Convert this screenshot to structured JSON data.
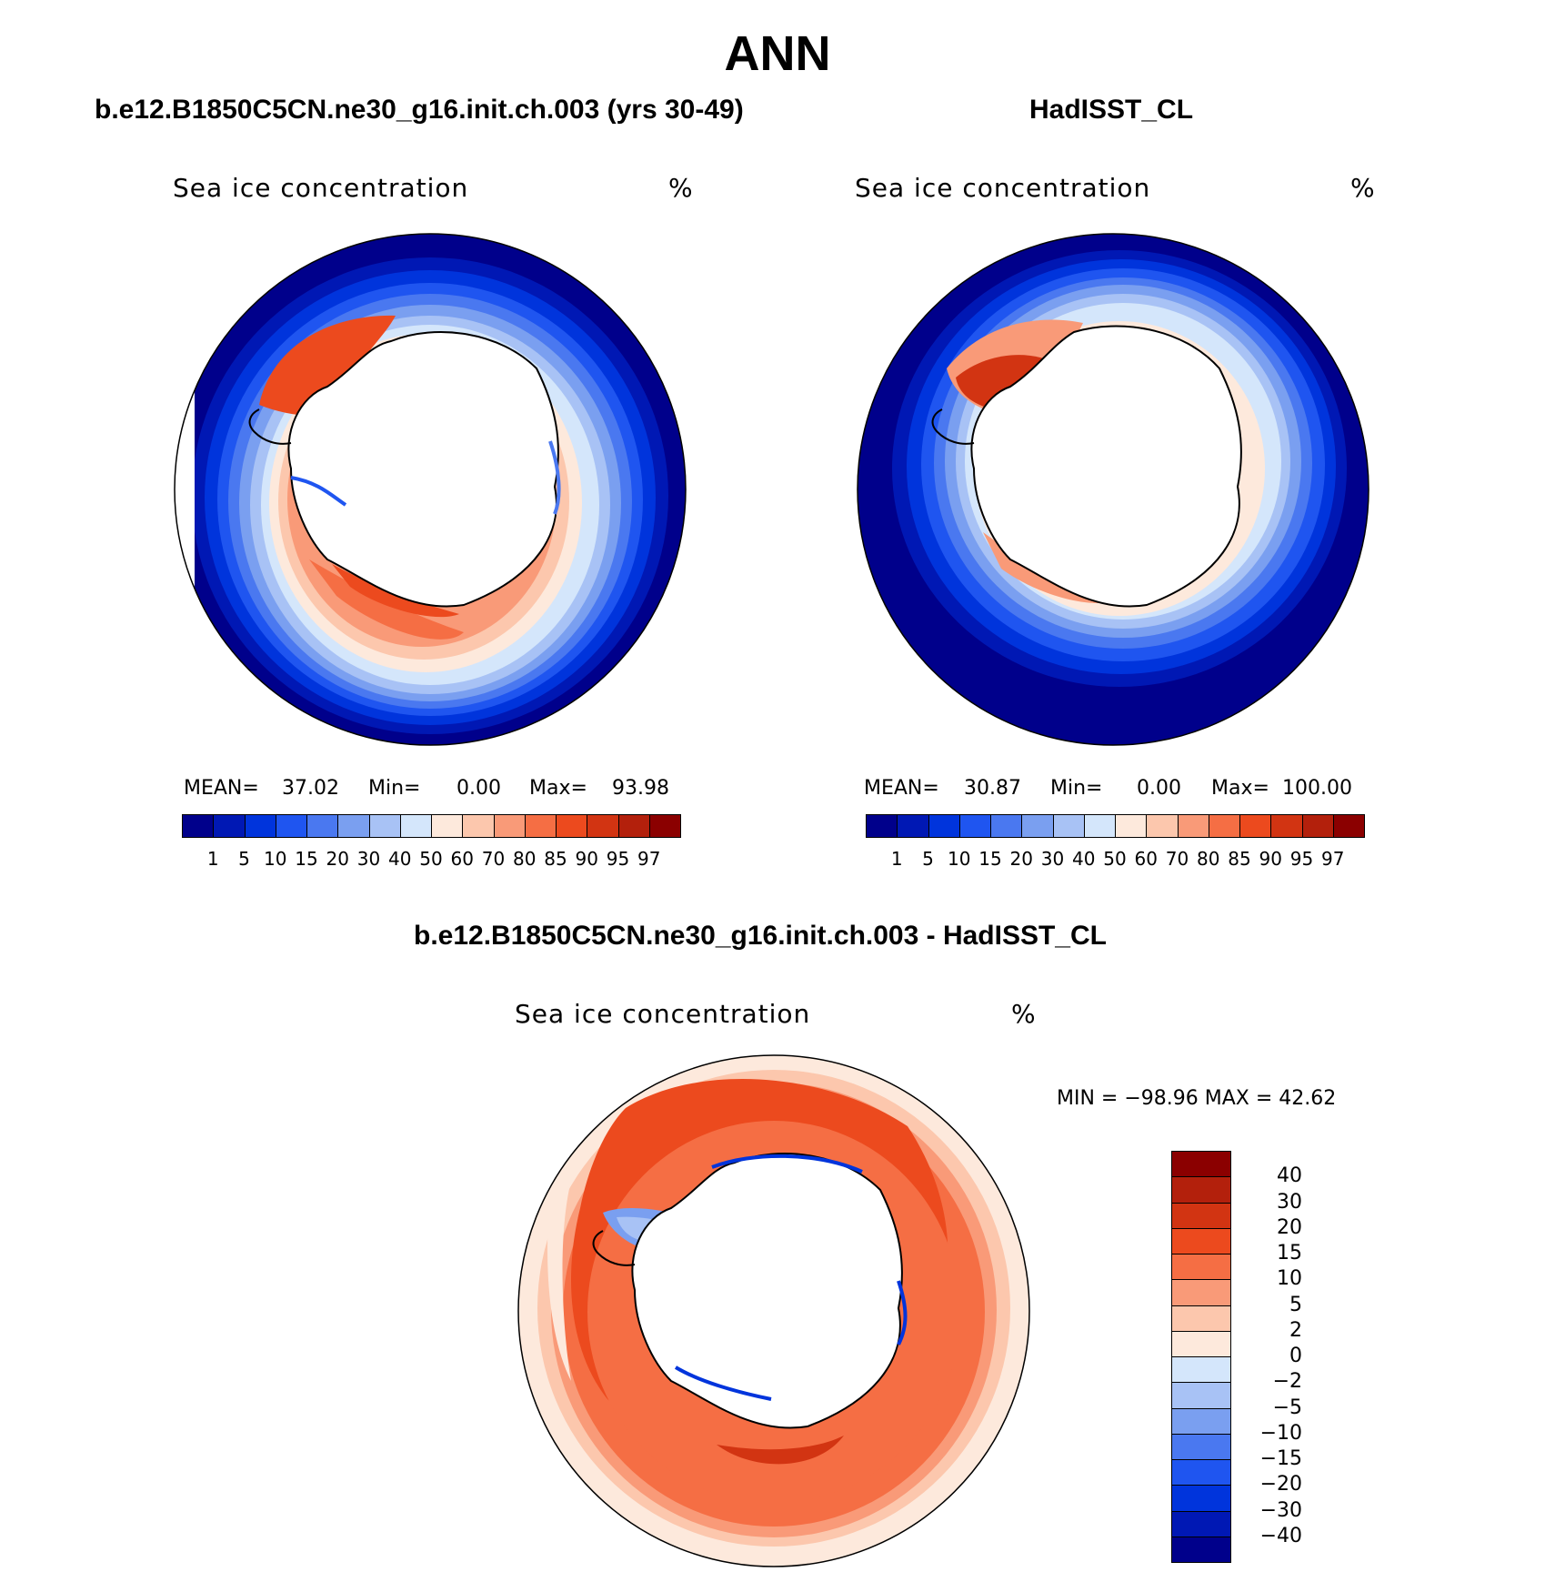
{
  "title": "ANN",
  "panels": {
    "left": {
      "title": "b.e12.B1850C5CN.ne30_g16.init.ch.003 (yrs 30-49)",
      "variable": "Sea ice concentration",
      "units": "%",
      "mean_label": "MEAN=",
      "mean_value": "37.02",
      "min_label": "Min=",
      "min_value": "0.00",
      "max_label": "Max=",
      "max_value": "93.98"
    },
    "right": {
      "title": "HadISST_CL",
      "variable": "Sea ice concentration",
      "units": "%",
      "mean_label": "MEAN=",
      "mean_value": "30.87",
      "min_label": "Min=",
      "min_value": "0.00",
      "max_label": "Max=",
      "max_value": "100.00"
    },
    "diff": {
      "title": "b.e12.B1850C5CN.ne30_g16.init.ch.003 - HadISST_CL",
      "variable": "Sea ice concentration",
      "units": "%",
      "minmax_text": "MIN = −98.96 MAX =   42.62"
    }
  },
  "colorbar_abs": {
    "labels": [
      "1",
      "5",
      "10",
      "15",
      "20",
      "30",
      "40",
      "50",
      "60",
      "70",
      "80",
      "85",
      "90",
      "95",
      "97"
    ],
    "colors": [
      "#00008b",
      "#0018b4",
      "#0034dc",
      "#1f55f0",
      "#4a78f0",
      "#7a9ff0",
      "#a8c2f5",
      "#d4e6fb",
      "#fde9dc",
      "#fcc7ad",
      "#f99a78",
      "#f56e44",
      "#ec4a1e",
      "#d23412",
      "#b3200c",
      "#8b0000"
    ]
  },
  "colorbar_diff": {
    "labels": [
      "40",
      "30",
      "20",
      "15",
      "10",
      "5",
      "2",
      "0",
      "−2",
      "−5",
      "−10",
      "−15",
      "−20",
      "−30",
      "−40"
    ],
    "colors": [
      "#8b0000",
      "#b3200c",
      "#d23412",
      "#ec4a1e",
      "#f56e44",
      "#f99a78",
      "#fcc7ad",
      "#fde9dc",
      "#d4e6fb",
      "#a8c2f5",
      "#7a9ff0",
      "#4a78f0",
      "#1f55f0",
      "#0034dc",
      "#0018b4",
      "#00008b"
    ]
  }
}
